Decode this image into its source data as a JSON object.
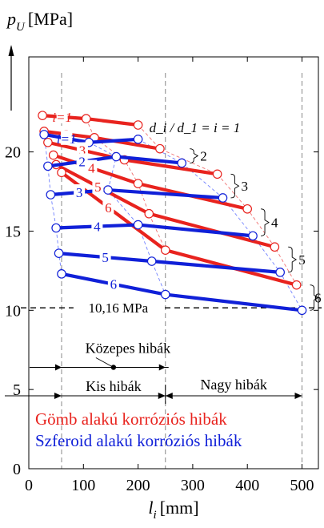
{
  "chart_data": {
    "type": "line",
    "ylabel_base": "p",
    "ylabel_sub": "U",
    "ylabel_unit": "[MPa]",
    "xlabel_base": "l",
    "xlabel_sub": "i",
    "xlabel_unit": "[mm]",
    "xlim": [
      0,
      530
    ],
    "ylim": [
      0,
      26
    ],
    "xticks": [
      0,
      100,
      200,
      300,
      400,
      500
    ],
    "yticks": [
      0,
      5,
      10,
      15,
      20
    ],
    "vlines": [
      60,
      250,
      500
    ],
    "ratio_annotation": "d_i / d_1 = i = 1",
    "threshold": {
      "value": 10.16,
      "label": "10,16 MPa"
    },
    "ranges": {
      "medium": {
        "label": "Közepes hibák",
        "from": 60,
        "to": 250,
        "marker_x": 155
      },
      "small": {
        "label": "Kis hibák",
        "from": 0,
        "to": 250
      },
      "large": {
        "label": "Nagy hibák",
        "from": 250,
        "to": 500
      }
    },
    "legend": {
      "red_label": "Gömb alakú korróziós hibák",
      "blue_label": "Szferoid alakú korróziós hibák"
    },
    "colors": {
      "red": "#e8231e",
      "blue": "#1020d8",
      "dash": "#7080ff",
      "grey": "#888888"
    },
    "series": [
      {
        "group": "red",
        "label": "1",
        "points": [
          [
            25,
            22.3
          ],
          [
            105,
            22.1
          ],
          [
            200,
            21.7
          ]
        ]
      },
      {
        "group": "red",
        "label": "2",
        "points": [
          [
            28,
            21.3
          ],
          [
            120,
            20.9
          ],
          [
            240,
            20.2
          ]
        ]
      },
      {
        "group": "red",
        "label": "3",
        "points": [
          [
            35,
            20.6
          ],
          [
            175,
            19.5
          ],
          [
            345,
            18.6
          ]
        ]
      },
      {
        "group": "red",
        "label": "4",
        "points": [
          [
            45,
            19.8
          ],
          [
            200,
            18.0
          ],
          [
            400,
            16.4
          ]
        ]
      },
      {
        "group": "red",
        "label": "5",
        "points": [
          [
            50,
            19.2
          ],
          [
            220,
            16.1
          ],
          [
            450,
            14.0
          ]
        ]
      },
      {
        "group": "red",
        "label": "6",
        "points": [
          [
            60,
            18.7
          ],
          [
            250,
            13.8
          ],
          [
            490,
            11.6
          ]
        ]
      },
      {
        "group": "blue",
        "label": "1",
        "points": [
          [
            28,
            21.1
          ],
          [
            110,
            20.6
          ],
          [
            200,
            20.8
          ]
        ]
      },
      {
        "group": "blue",
        "label": "2",
        "points": [
          [
            35,
            19.1
          ],
          [
            160,
            19.7
          ],
          [
            280,
            19.3
          ]
        ]
      },
      {
        "group": "blue",
        "label": "3",
        "points": [
          [
            40,
            17.3
          ],
          [
            145,
            17.6
          ],
          [
            355,
            17.1
          ]
        ]
      },
      {
        "group": "blue",
        "label": "4",
        "points": [
          [
            50,
            15.2
          ],
          [
            200,
            15.4
          ],
          [
            410,
            14.7
          ]
        ]
      },
      {
        "group": "blue",
        "label": "5",
        "points": [
          [
            55,
            13.6
          ],
          [
            225,
            13.1
          ],
          [
            460,
            12.4
          ]
        ]
      },
      {
        "group": "blue",
        "label": "6",
        "points": [
          [
            60,
            12.3
          ],
          [
            250,
            11.0
          ],
          [
            500,
            10.0
          ]
        ]
      }
    ],
    "side_labels": [
      "2",
      "3",
      "4",
      "5",
      "6"
    ]
  }
}
